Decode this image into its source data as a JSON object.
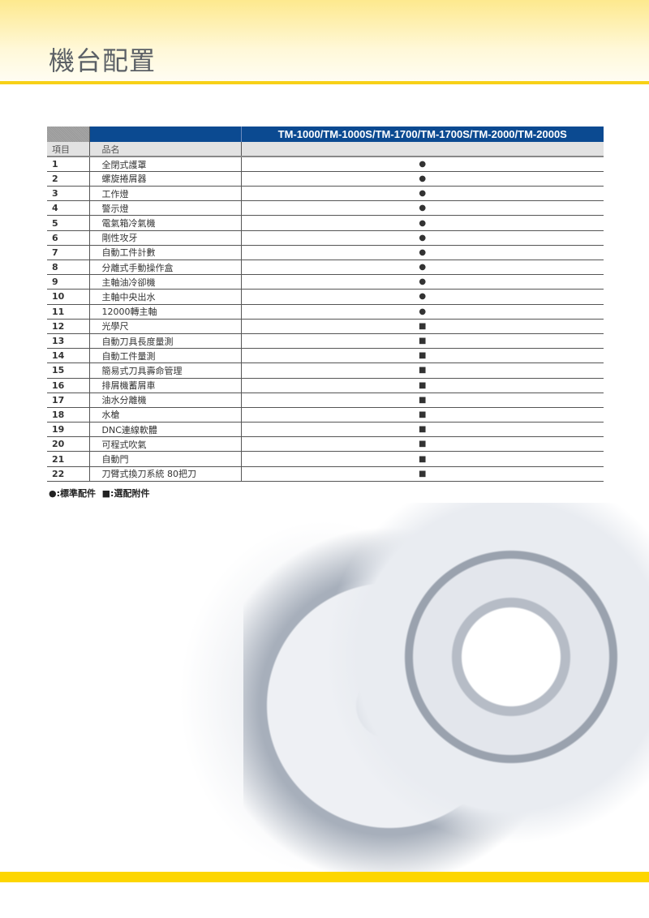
{
  "title": "機台配置",
  "table": {
    "model_header": "TM-1000/TM-1000S/TM-1700/TM-1700S/TM-2000/TM-2000S",
    "col_item": "項目",
    "col_name": "品名",
    "rows": [
      {
        "no": "1",
        "name": "全閉式護罩",
        "mark": "●"
      },
      {
        "no": "2",
        "name": "螺旋捲屑器",
        "mark": "●"
      },
      {
        "no": "3",
        "name": "工作燈",
        "mark": "●"
      },
      {
        "no": "4",
        "name": "警示燈",
        "mark": "●"
      },
      {
        "no": "5",
        "name": "電氣箱冷氣機",
        "mark": "●"
      },
      {
        "no": "6",
        "name": "剛性攻牙",
        "mark": "●"
      },
      {
        "no": "7",
        "name": "自動工件計數",
        "mark": "●"
      },
      {
        "no": "8",
        "name": "分離式手動操作盒",
        "mark": "●"
      },
      {
        "no": "9",
        "name": "主軸油冷卻機",
        "mark": "●"
      },
      {
        "no": "10",
        "name": "主軸中央出水",
        "mark": "●"
      },
      {
        "no": "11",
        "name": "12000轉主軸",
        "mark": "●"
      },
      {
        "no": "12",
        "name": "光學尺",
        "mark": "■"
      },
      {
        "no": "13",
        "name": "自動刀具長度量測",
        "mark": "■"
      },
      {
        "no": "14",
        "name": "自動工件量測",
        "mark": "■"
      },
      {
        "no": "15",
        "name": "簡易式刀具壽命管理",
        "mark": "■"
      },
      {
        "no": "16",
        "name": "排屑機蓄屑車",
        "mark": "■"
      },
      {
        "no": "17",
        "name": "油水分離機",
        "mark": "■"
      },
      {
        "no": "18",
        "name": "水槍",
        "mark": "■"
      },
      {
        "no": "19",
        "name": "DNC連線軟體",
        "mark": "■"
      },
      {
        "no": "20",
        "name": "可程式吹氣",
        "mark": "■"
      },
      {
        "no": "21",
        "name": "自動門",
        "mark": "■"
      },
      {
        "no": "22",
        "name": "刀臂式換刀系統 80把刀",
        "mark": "■"
      }
    ]
  },
  "legend": "●:標準配件  ■:選配附件",
  "colors": {
    "accent_yellow": "#f7d117",
    "header_blue": "#0b4a91"
  }
}
